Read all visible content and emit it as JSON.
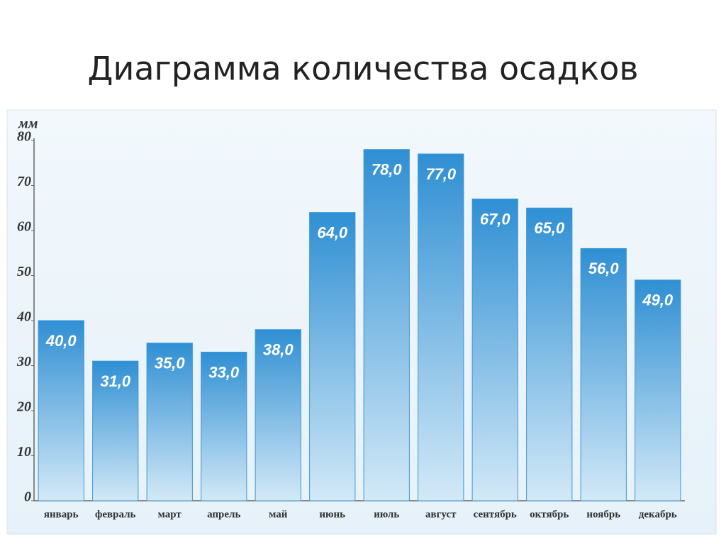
{
  "chart_data": {
    "type": "bar",
    "title": "Диаграмма количества осадков",
    "y_label": "мм",
    "categories": [
      "январь",
      "февраль",
      "март",
      "апрель",
      "май",
      "июнь",
      "июль",
      "август",
      "сентябрь",
      "октябрь",
      "ноябрь",
      "декабрь"
    ],
    "values": [
      40,
      31,
      35,
      33,
      38,
      64,
      78,
      77,
      67,
      65,
      56,
      49
    ],
    "value_labels": [
      "40,0",
      "31,0",
      "35,0",
      "33,0",
      "38,0",
      "64,0",
      "78,0",
      "77,0",
      "67,0",
      "65,0",
      "56,0",
      "49,0"
    ],
    "color": "#3a98d8",
    "ylim": [
      0,
      80
    ],
    "yticks": [
      0,
      10,
      20,
      30,
      40,
      50,
      60,
      70,
      80
    ]
  }
}
